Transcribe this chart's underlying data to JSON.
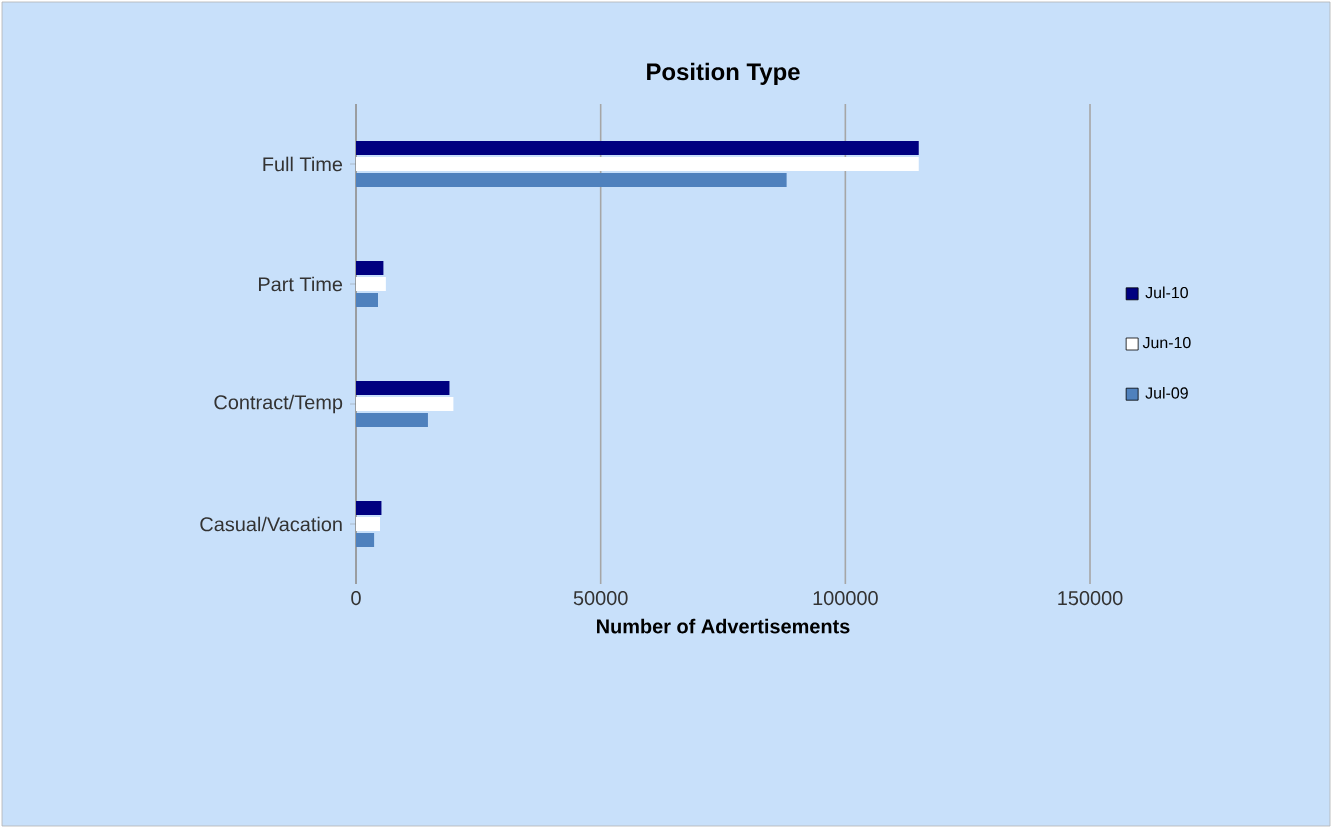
{
  "chart_data": {
    "type": "bar",
    "orientation": "horizontal",
    "title": "Position Type",
    "xlabel": "Number of Advertisements",
    "categories": [
      "Full Time",
      "Part Time",
      "Contract/Temp",
      "Casual/Vacation"
    ],
    "series": [
      {
        "name": "Jul-10",
        "color": "#000080",
        "values": [
          115000,
          5600,
          19100,
          5200
        ]
      },
      {
        "name": "Jun-10",
        "color": "#ffffff",
        "values": [
          115000,
          6100,
          19900,
          4900
        ]
      },
      {
        "name": "Jul-09",
        "color": "#4f81bd",
        "values": [
          88000,
          4500,
          14700,
          3700
        ]
      }
    ],
    "xlim": [
      0,
      150000
    ],
    "xticks": [
      0,
      50000,
      100000,
      150000
    ],
    "grid": "x",
    "legend": "right"
  }
}
